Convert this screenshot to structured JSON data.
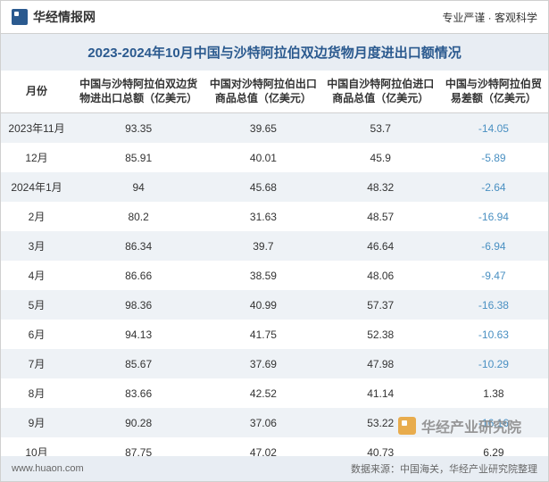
{
  "header": {
    "logo_text": "华经情报网",
    "right_text": "专业严谨 · 客观科学"
  },
  "title": "2023-2024年10月中国与沙特阿拉伯双边货物月度进出口额情况",
  "columns": [
    "月份",
    "中国与沙特阿拉伯双边货物进出口总额（亿美元）",
    "中国对沙特阿拉伯出口商品总值（亿美元）",
    "中国自沙特阿拉伯进口商品总值（亿美元）",
    "中国与沙特阿拉伯贸易差额（亿美元）"
  ],
  "rows": [
    {
      "month": "2023年11月",
      "total": "93.35",
      "export": "39.65",
      "import": "53.7",
      "balance": "-14.05",
      "neg": true
    },
    {
      "month": "12月",
      "total": "85.91",
      "export": "40.01",
      "import": "45.9",
      "balance": "-5.89",
      "neg": true
    },
    {
      "month": "2024年1月",
      "total": "94",
      "export": "45.68",
      "import": "48.32",
      "balance": "-2.64",
      "neg": true
    },
    {
      "month": "2月",
      "total": "80.2",
      "export": "31.63",
      "import": "48.57",
      "balance": "-16.94",
      "neg": true
    },
    {
      "month": "3月",
      "total": "86.34",
      "export": "39.7",
      "import": "46.64",
      "balance": "-6.94",
      "neg": true
    },
    {
      "month": "4月",
      "total": "86.66",
      "export": "38.59",
      "import": "48.06",
      "balance": "-9.47",
      "neg": true
    },
    {
      "month": "5月",
      "total": "98.36",
      "export": "40.99",
      "import": "57.37",
      "balance": "-16.38",
      "neg": true
    },
    {
      "month": "6月",
      "total": "94.13",
      "export": "41.75",
      "import": "52.38",
      "balance": "-10.63",
      "neg": true
    },
    {
      "month": "7月",
      "total": "85.67",
      "export": "37.69",
      "import": "47.98",
      "balance": "-10.29",
      "neg": true
    },
    {
      "month": "8月",
      "total": "83.66",
      "export": "42.52",
      "import": "41.14",
      "balance": "1.38",
      "neg": false
    },
    {
      "month": "9月",
      "total": "90.28",
      "export": "37.06",
      "import": "53.22",
      "balance": "-16.16",
      "neg": true
    },
    {
      "month": "10月",
      "total": "87.75",
      "export": "47.02",
      "import": "40.73",
      "balance": "6.29",
      "neg": false
    }
  ],
  "footer": {
    "left": "www.huaon.com",
    "right": "数据来源：中国海关，华经产业研究院整理"
  },
  "watermark": "华经产业研究院",
  "styling": {
    "type": "table",
    "title_color": "#2b5a8f",
    "title_bg": "#e8edf3",
    "row_odd_bg": "#eef2f6",
    "row_even_bg": "#ffffff",
    "negative_color": "#4a90c2",
    "positive_color": "#333333",
    "border_color": "#d0d0d0",
    "title_fontsize": 15,
    "body_fontsize": 12,
    "header_fontsize": 12,
    "footer_fontsize": 11
  }
}
